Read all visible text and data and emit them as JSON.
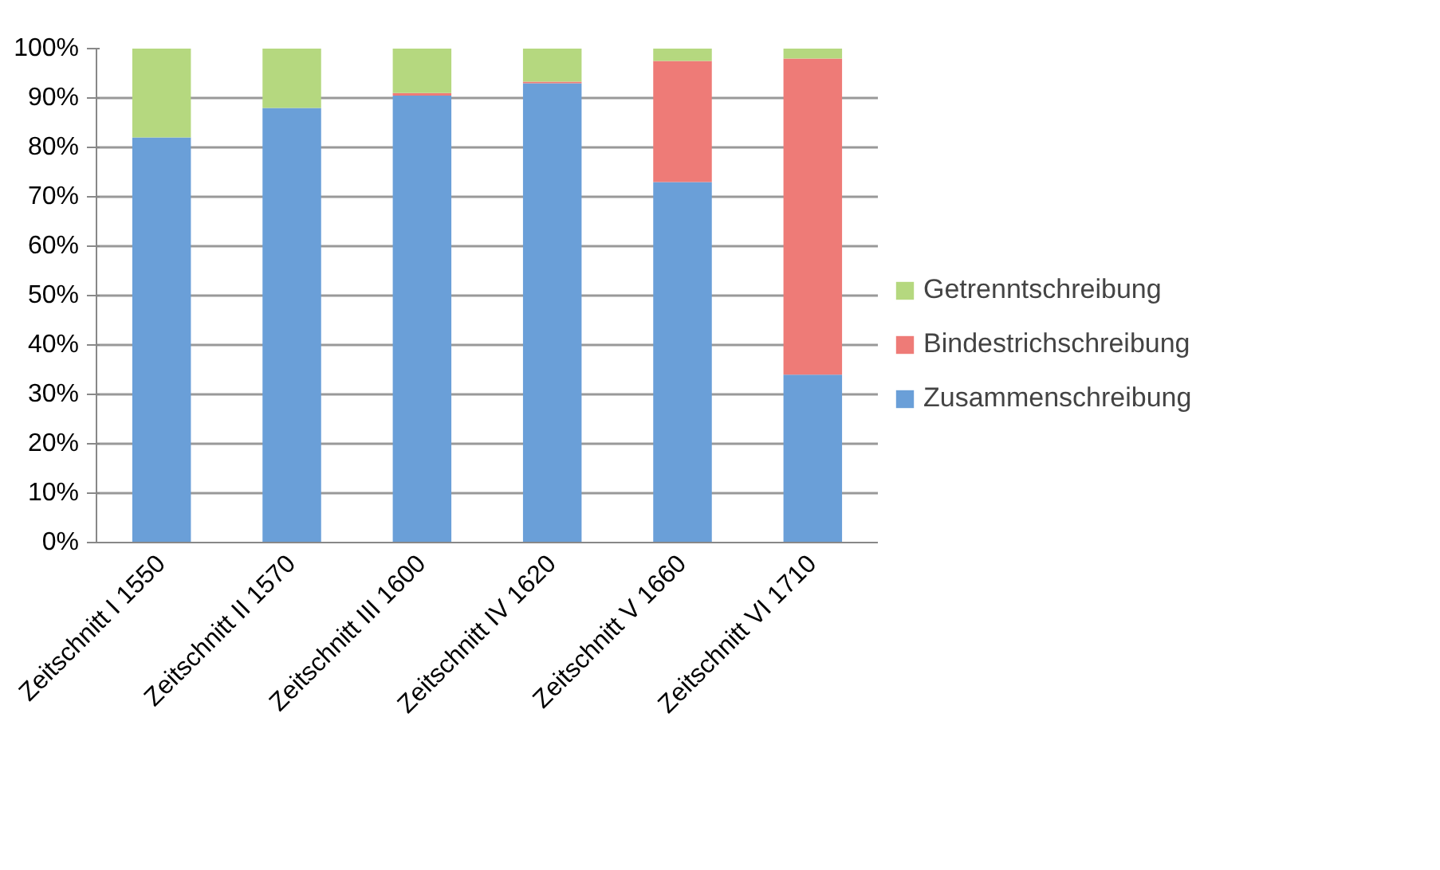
{
  "chart_data": {
    "type": "bar",
    "stacked": true,
    "categories": [
      "Zeitschnitt I 1550",
      "Zeitschnitt II 1570",
      "Zeitschnitt III 1600",
      "Zeitschnitt IV 1620",
      "Zeitschnitt V 1660",
      "Zeitschnitt VI 1710"
    ],
    "series": [
      {
        "name": "Zusammenschreibung",
        "color": "#6a9fd8",
        "values": [
          82,
          88,
          90.5,
          93,
          73,
          34
        ]
      },
      {
        "name": "Bindestrichschreibung",
        "color": "#ee7b77",
        "values": [
          0,
          0,
          0.5,
          0.3,
          24.5,
          64
        ]
      },
      {
        "name": "Getrenntschreibung",
        "color": "#b5d87f",
        "values": [
          18,
          12,
          9,
          6.7,
          2.5,
          2
        ]
      }
    ],
    "ylim": [
      0,
      100
    ],
    "yticks": [
      {
        "value": 0,
        "label": "0%"
      },
      {
        "value": 10,
        "label": "10%"
      },
      {
        "value": 20,
        "label": "20%"
      },
      {
        "value": 30,
        "label": "30%"
      },
      {
        "value": 40,
        "label": "40%"
      },
      {
        "value": 50,
        "label": "50%"
      },
      {
        "value": 60,
        "label": "60%"
      },
      {
        "value": 70,
        "label": "70%"
      },
      {
        "value": 80,
        "label": "80%"
      },
      {
        "value": 90,
        "label": "90%"
      },
      {
        "value": 100,
        "label": "100%"
      }
    ],
    "grid": "y",
    "legend": "right"
  }
}
